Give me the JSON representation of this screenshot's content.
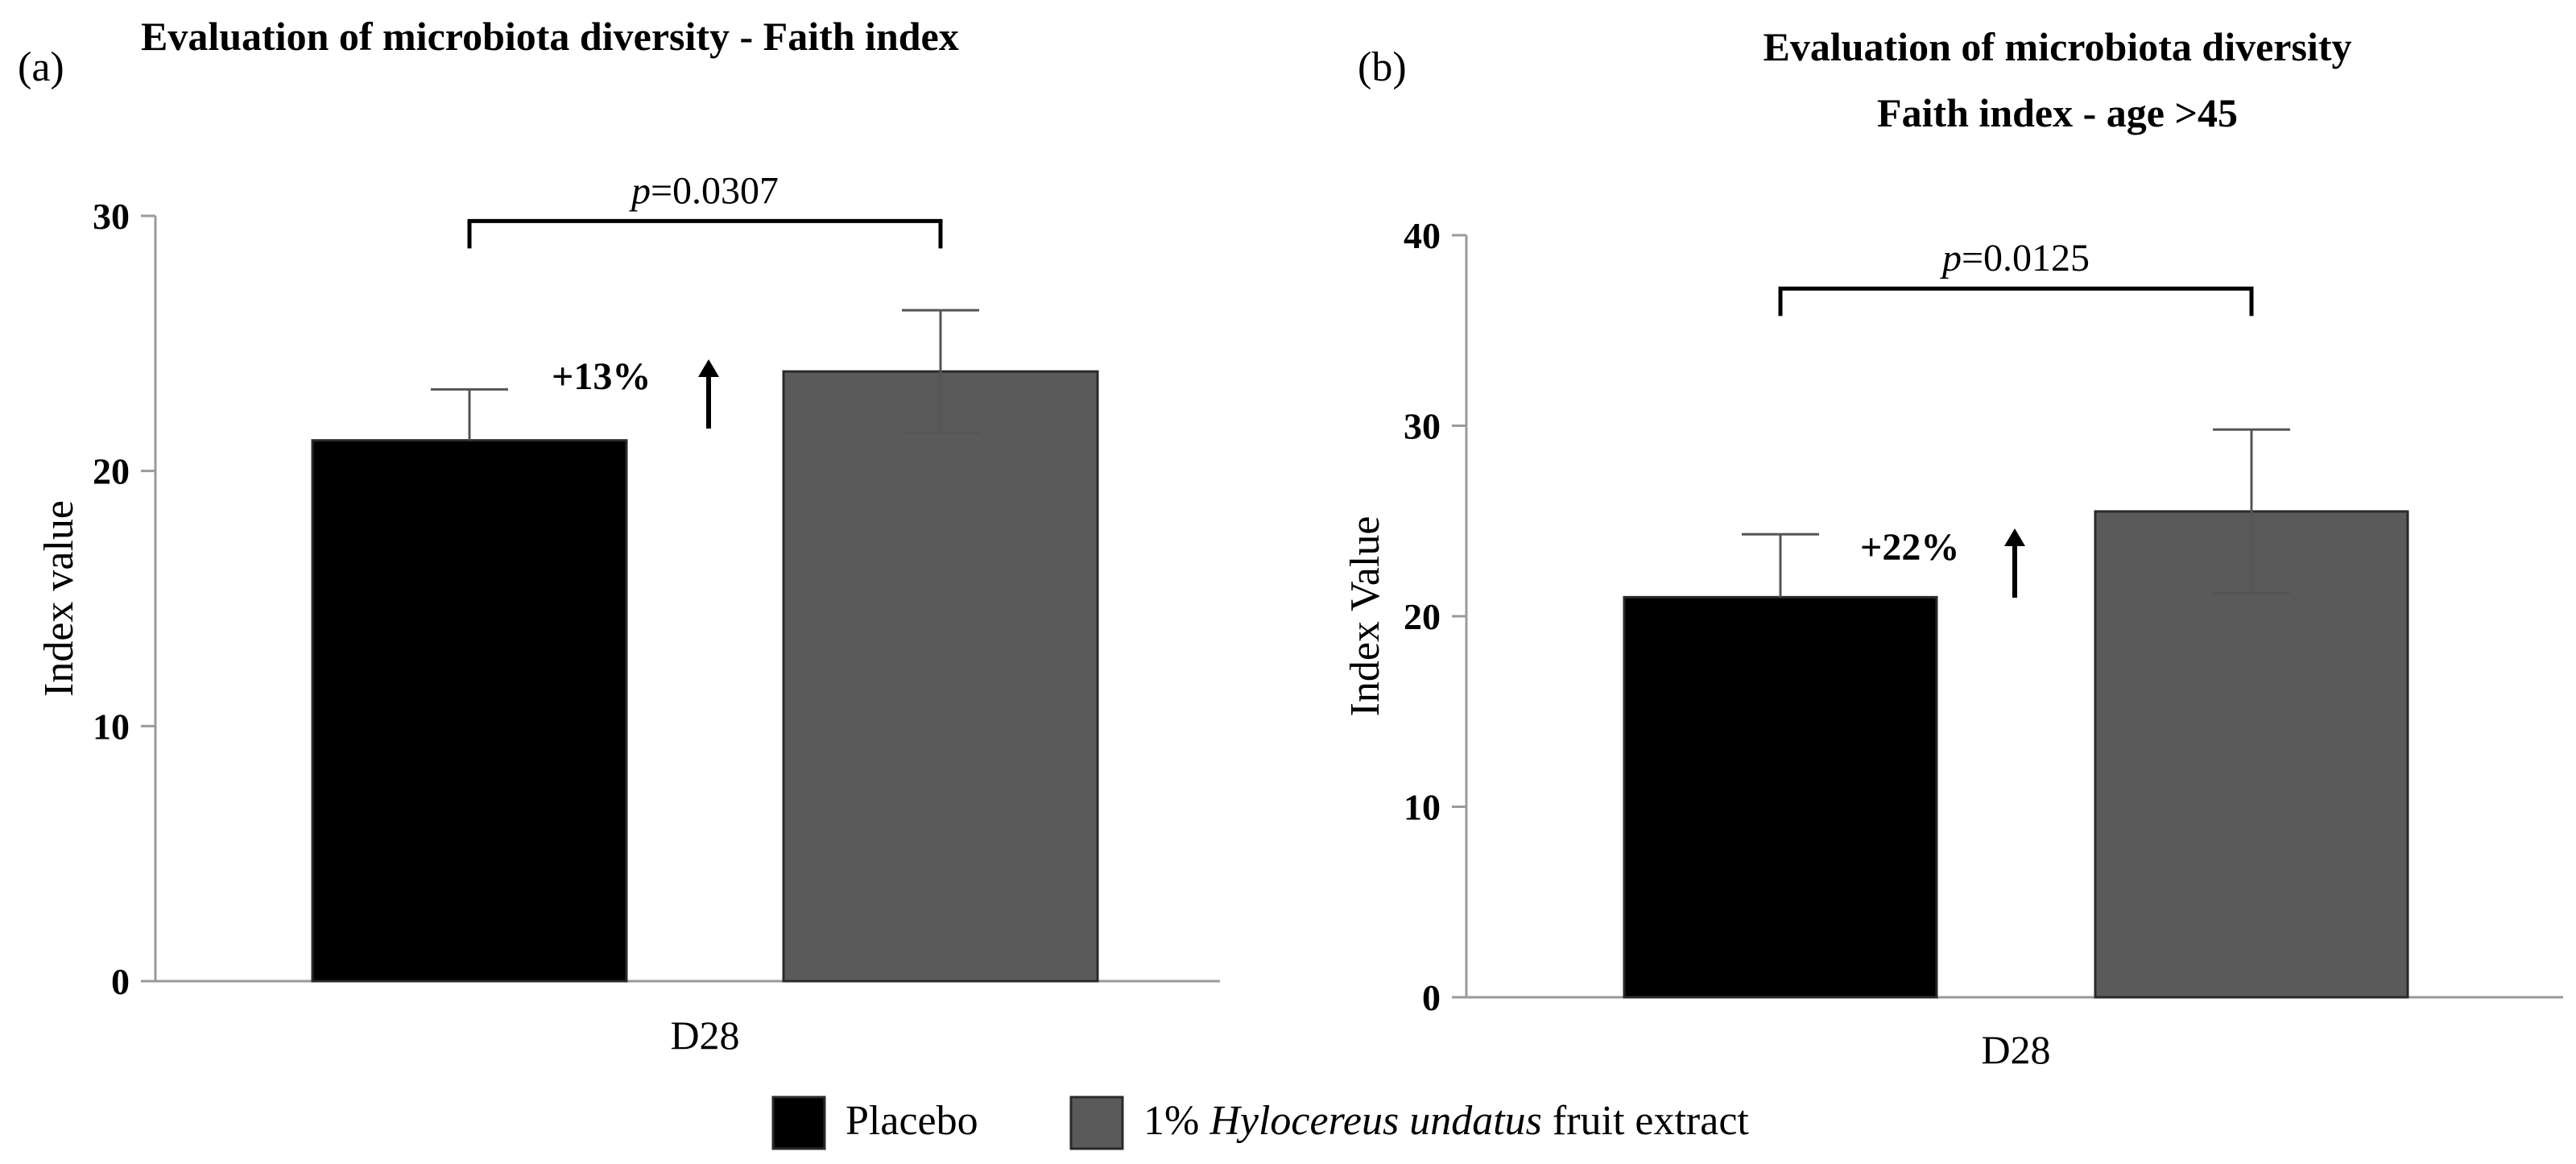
{
  "chart_data": [
    {
      "panel_label": "(a)",
      "type": "bar",
      "title_lines": [
        "Evaluation of microbiota diversity - Faith index"
      ],
      "xlabel": "",
      "ylabel": "Index value",
      "ylim": [
        0,
        30
      ],
      "yticks": [
        0,
        10,
        20,
        30
      ],
      "categories": [
        "D28"
      ],
      "series": [
        {
          "name": "Placebo",
          "values": [
            21.2
          ],
          "error": [
            2.0
          ]
        },
        {
          "name": "1% Hylocereus undatus fruit extract",
          "values": [
            23.9
          ],
          "error": [
            2.4
          ]
        }
      ],
      "significance": {
        "p_prefix": "p",
        "p_value": "=0.0307",
        "bracket_level": 29.8
      },
      "annotation": {
        "text": "+13%",
        "arrow": "up"
      }
    },
    {
      "panel_label": "(b)",
      "type": "bar",
      "title_lines": [
        "Evaluation of microbiota diversity",
        "Faith index - age >45"
      ],
      "xlabel": "",
      "ylabel": "Index Value",
      "ylim": [
        0,
        40
      ],
      "yticks": [
        0,
        10,
        20,
        30,
        40
      ],
      "categories": [
        "D28"
      ],
      "series": [
        {
          "name": "Placebo",
          "values": [
            21.0
          ],
          "error": [
            3.3
          ]
        },
        {
          "name": "1% Hylocereus undatus fruit extract",
          "values": [
            25.5
          ],
          "error": [
            4.3
          ]
        }
      ],
      "significance": {
        "p_prefix": "p",
        "p_value": "=0.0125",
        "bracket_level": 37.2
      },
      "annotation": {
        "text": "+22%",
        "arrow": "up"
      }
    }
  ],
  "legend": {
    "items": [
      {
        "parts": [
          {
            "text": "Placebo",
            "italic": false
          }
        ],
        "color": "#000000"
      },
      {
        "parts": [
          {
            "text": "1% ",
            "italic": false
          },
          {
            "text": "Hylocereus undatus",
            "italic": true
          },
          {
            "text": " fruit extract",
            "italic": false
          }
        ],
        "color": "#5a5a5a"
      }
    ]
  },
  "colors": {
    "placebo": "#000000",
    "extract": "#5a5a5a",
    "axis": "#9a9a9a",
    "error_bar": "#555555"
  }
}
